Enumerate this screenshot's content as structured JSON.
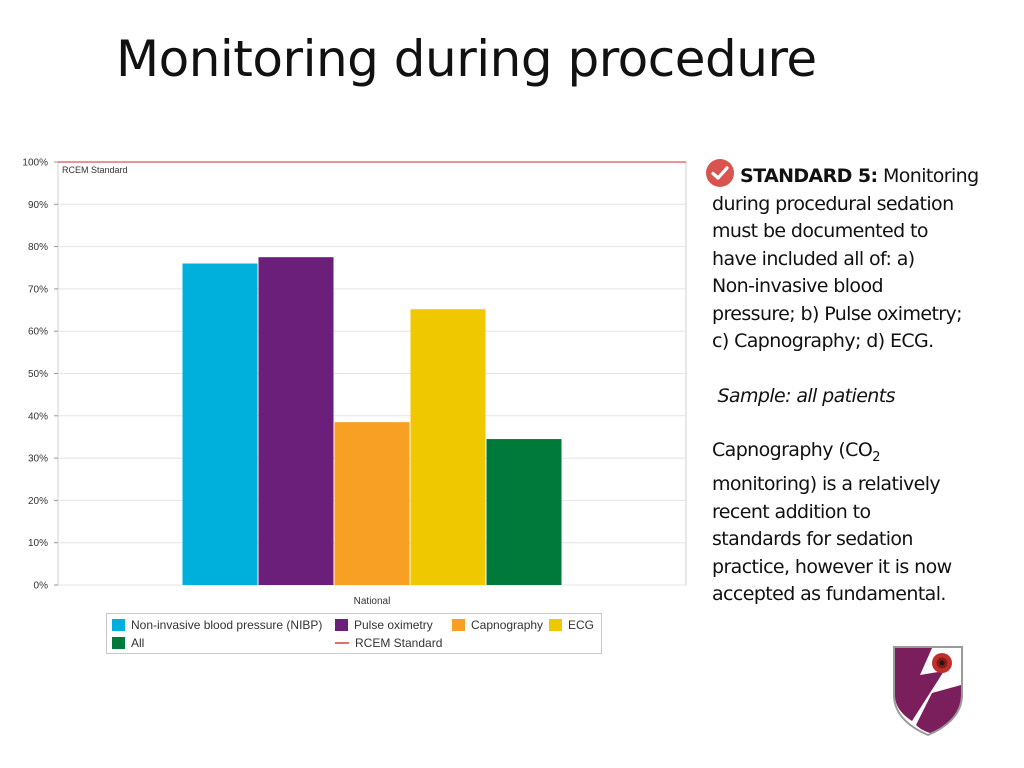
{
  "page": {
    "title": "Monitoring during procedure"
  },
  "chart_data": {
    "type": "bar",
    "categories": [
      "National"
    ],
    "series": [
      {
        "name": "Non-invasive blood pressure (NIBP)",
        "values": [
          76
        ],
        "color": "#00b0dc"
      },
      {
        "name": "Pulse oximetry",
        "values": [
          77.5
        ],
        "color": "#6b1f7a"
      },
      {
        "name": "Capnography",
        "values": [
          38.5
        ],
        "color": "#f8a023"
      },
      {
        "name": "ECG",
        "values": [
          65.2
        ],
        "color": "#f0c800"
      },
      {
        "name": "All",
        "values": [
          34.5
        ],
        "color": "#007a3a"
      }
    ],
    "reference_line": {
      "name": "RCEM Standard",
      "value": 100,
      "color": "#e07070"
    },
    "yticks": [
      "0%",
      "10%",
      "20%",
      "30%",
      "40%",
      "50%",
      "60%",
      "70%",
      "80%",
      "90%",
      "100%"
    ],
    "ylim": [
      0,
      100
    ],
    "grid": true,
    "legend_position": "bottom",
    "title": "",
    "xlabel": "",
    "ylabel": ""
  },
  "side_panel": {
    "standard_label": "STANDARD 5:",
    "standard_text_first": "Monitoring",
    "standard_text_lines": [
      "during procedural sedation",
      "must be documented to",
      "have included all of: a)",
      "Non-invasive blood",
      "pressure; b) Pulse oximetry;",
      "c) Capnography; d) ECG."
    ],
    "sample_text": "Sample: all patients",
    "capno_text_a": "Capnography (CO",
    "capno_sub": "2",
    "capno_lines": [
      "monitoring) is a relatively",
      "recent addition to",
      "standards for sedation",
      "practice, however it is now",
      "accepted as fundamental."
    ],
    "check_color": "#d9534f"
  },
  "crest": {
    "shield_color": "#7a1f5c",
    "flower_color": "#c0302a"
  }
}
